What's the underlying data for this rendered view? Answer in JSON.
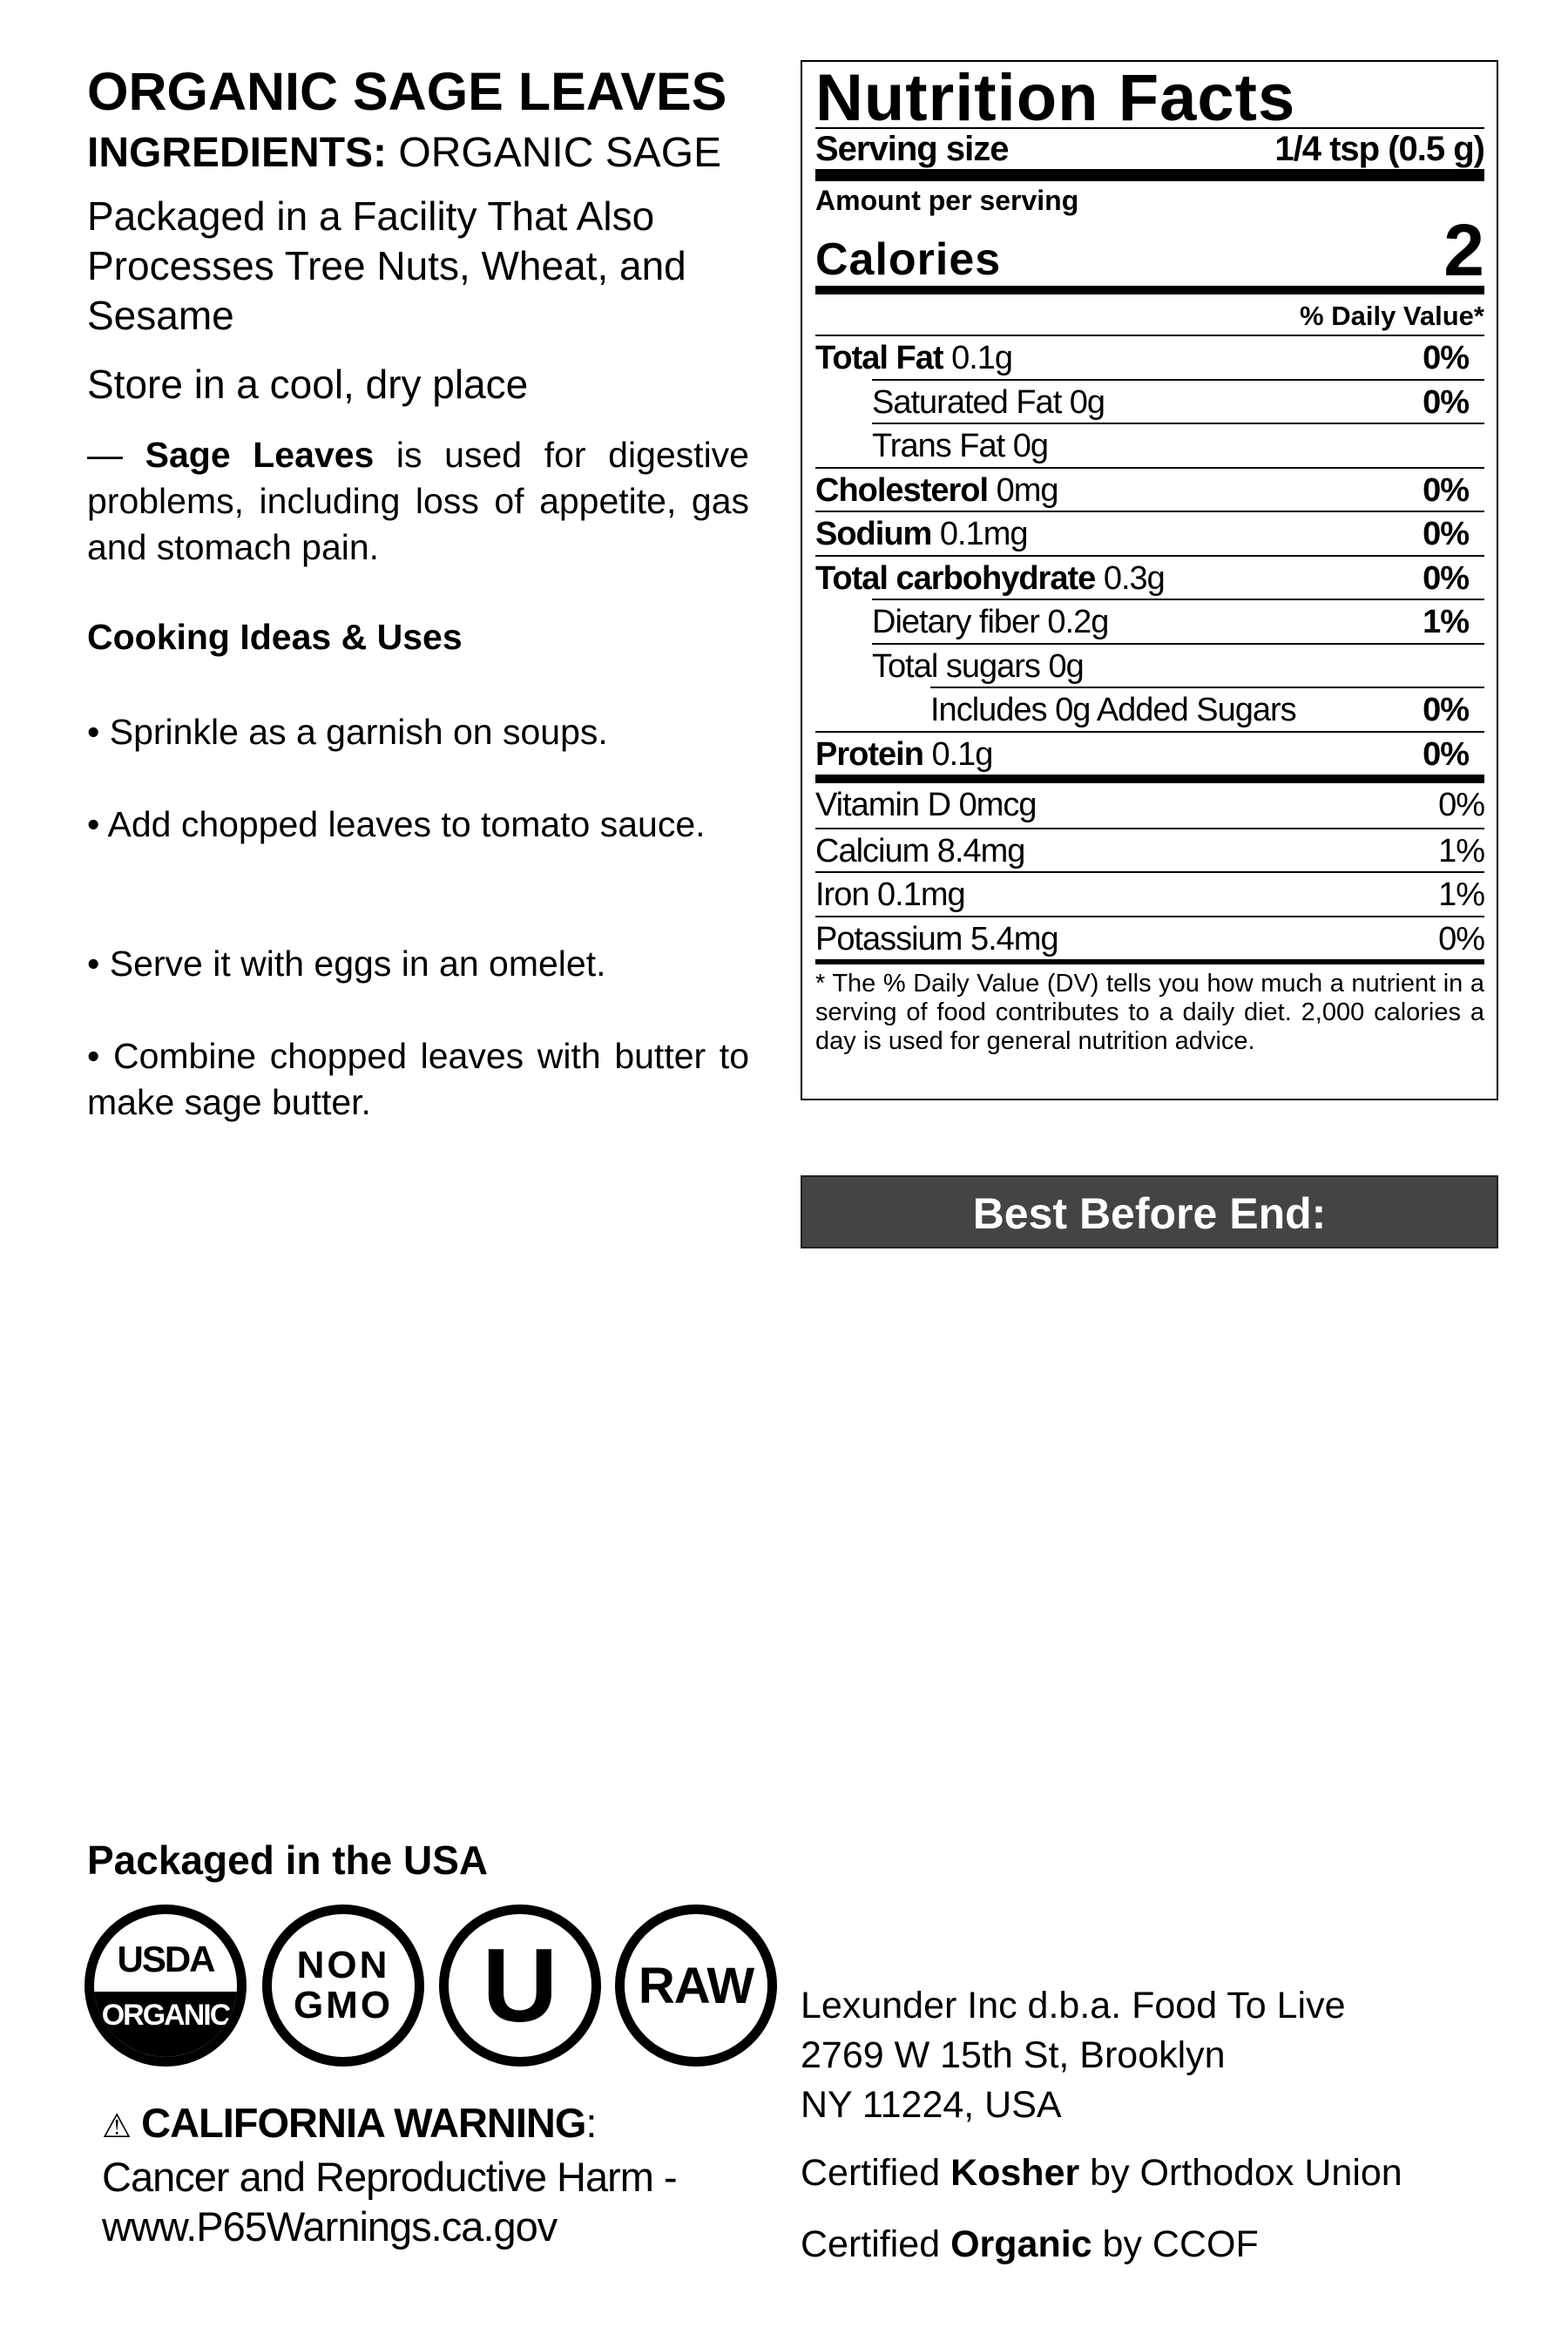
{
  "product": {
    "title": "ORGANIC SAGE LEAVES",
    "ingredients_label": "INGREDIENTS:",
    "ingredients": "ORGANIC SAGE"
  },
  "allergen": "Packaged in a Facility That Also Processes Tree Nuts, Wheat, and Sesame",
  "storage": "Store in a cool, dry place",
  "description": {
    "dash": "— ",
    "name": "Sage Leaves",
    "text": " is used for digestive problems, including loss of appetite, gas and stomach pain."
  },
  "cooking": {
    "heading": "Cooking Ideas & Uses",
    "items": [
      "• Sprinkle as a garnish on soups.",
      "• Add chopped leaves to tomato sauce.",
      "• Serve it with eggs in an omelet.",
      "• Combine chopped leaves with butter to make sage butter."
    ]
  },
  "nutrition": {
    "title": "Nutrition Facts",
    "serving_label": "Serving size",
    "serving_value": "1/4 tsp (0.5 g)",
    "amount_label": "Amount per serving",
    "calories_label": "Calories",
    "calories": "2",
    "dv_header": "% Daily Value*",
    "rows": [
      {
        "name": "Total Fat",
        "amount": " 0.1g",
        "dv": "0%"
      },
      {
        "name": "Saturated Fat 0g",
        "amount": "",
        "dv": "0%"
      },
      {
        "name": "Trans Fat 0g",
        "amount": "",
        "dv": ""
      },
      {
        "name": "Cholesterol",
        "amount": " 0mg",
        "dv": "0%"
      },
      {
        "name": "Sodium",
        "amount": " 0.1mg",
        "dv": "0%"
      },
      {
        "name": "Total carbohydrate",
        "amount": " 0.3g",
        "dv": "0%"
      },
      {
        "name": "Dietary fiber 0.2g",
        "amount": "",
        "dv": "1%"
      },
      {
        "name": "Total sugars 0g",
        "amount": "",
        "dv": ""
      },
      {
        "name": "Includes 0g Added Sugars",
        "amount": "",
        "dv": "0%"
      },
      {
        "name": "Protein",
        "amount": " 0.1g",
        "dv": "0%"
      }
    ],
    "vitamins": [
      {
        "name": "Vitamin D 0mcg",
        "dv": "0%"
      },
      {
        "name": "Calcium 8.4mg",
        "dv": "1%"
      },
      {
        "name": "Iron 0.1mg",
        "dv": "1%"
      },
      {
        "name": "Potassium 5.4mg",
        "dv": "0%"
      }
    ],
    "footnote": "* The % Daily Value (DV) tells you how much a nutrient in a serving of food contributes to a daily diet. 2,000 calories a day is used for general nutrition advice."
  },
  "best_before": "Best Before End:",
  "packaged": "Packaged in the USA",
  "badges": {
    "usda_top": "USDA",
    "usda_bottom": "ORGANIC",
    "non": "NON",
    "gmo": "GMO",
    "ou": "U",
    "raw": "RAW"
  },
  "warning": {
    "icon": "warning-triangle-icon",
    "symbol": "⚠",
    "title": "CALIFORNIA WARNING",
    "colon": ":",
    "line1": "Cancer and Reproductive Harm -",
    "line2": "www.P65Warnings.ca.gov"
  },
  "company": {
    "line1": "Lexunder Inc d.b.a. Food To Live",
    "line2": "2769 W 15th St, Brooklyn",
    "line3": "NY 11224, USA"
  },
  "certs": {
    "kosher_pre": "Certified ",
    "kosher_bold": "Kosher",
    "kosher_post": " by Orthodox Union",
    "organic_pre": "Certified ",
    "organic_bold": "Organic",
    "organic_post": " by CCOF"
  }
}
